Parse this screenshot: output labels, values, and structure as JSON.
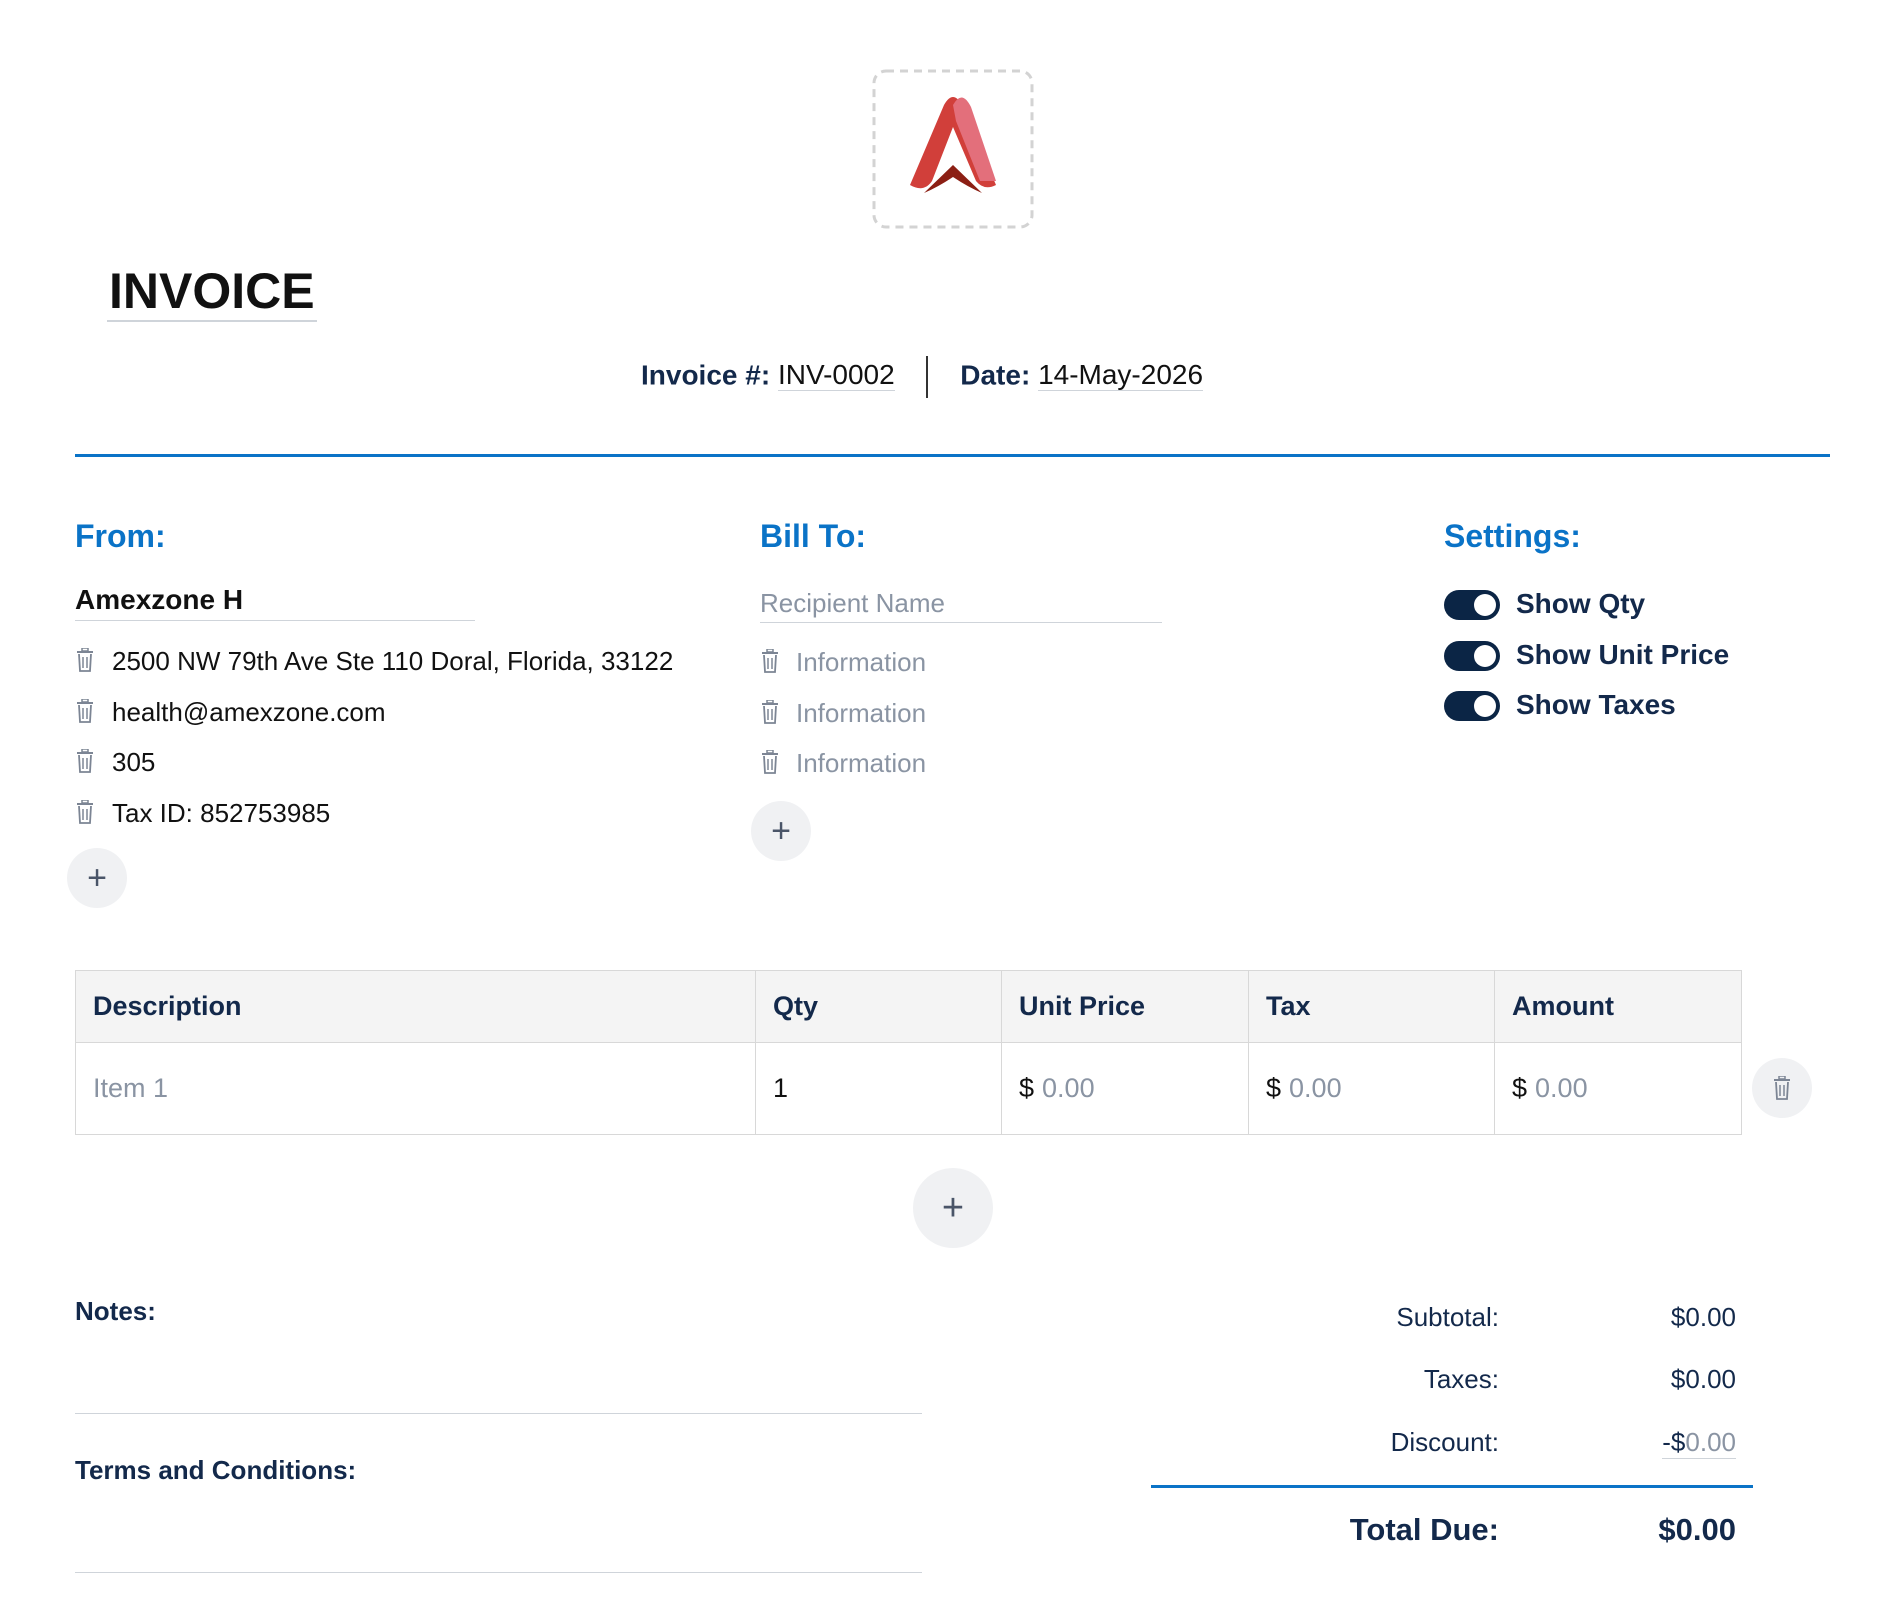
{
  "header": {
    "title": "INVOICE",
    "invoice_label": "Invoice #:",
    "invoice_number": "INV-0002",
    "date_label": "Date:",
    "date": "14-May-2026"
  },
  "from": {
    "heading": "From:",
    "name": "Amexzone H",
    "lines": [
      "2500 NW 79th Ave Ste 110 Doral, Florida, 33122",
      "health@amexzone.com",
      "305",
      "Tax ID: 852753985"
    ]
  },
  "bill_to": {
    "heading": "Bill To:",
    "name_placeholder": "Recipient Name",
    "lines": [
      "Information",
      "Information",
      "Information"
    ]
  },
  "settings": {
    "heading": "Settings:",
    "toggles": [
      {
        "label": "Show Qty",
        "on": true
      },
      {
        "label": "Show Unit Price",
        "on": true
      },
      {
        "label": "Show Taxes",
        "on": true
      }
    ]
  },
  "table": {
    "headers": [
      "Description",
      "Qty",
      "Unit Price",
      "Tax",
      "Amount"
    ],
    "rows": [
      [
        {
          "text": "Item 1"
        },
        {
          "text": "1"
        },
        {
          "symbol": "$",
          "text": "0.00"
        },
        {
          "symbol": "$",
          "text": "0.00"
        },
        {
          "symbol": "$",
          "text": "0.00"
        }
      ]
    ]
  },
  "notes": {
    "label": "Notes:"
  },
  "terms": {
    "label": "Terms and Conditions:"
  },
  "totals": {
    "subtotal_label": "Subtotal:",
    "subtotal": "$0.00",
    "taxes_label": "Taxes:",
    "taxes": "$0.00",
    "discount_label": "Discount:",
    "discount_symbol": "-$",
    "discount": "0.00",
    "total_label": "Total Due:",
    "total": "$0.00"
  }
}
